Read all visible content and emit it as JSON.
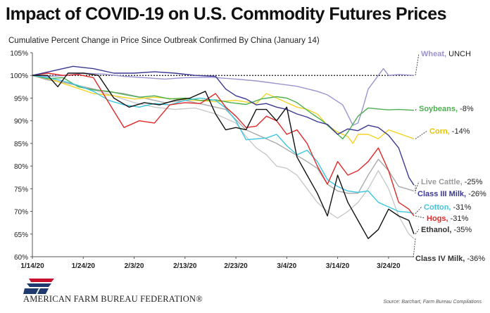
{
  "title": "Impact of COVID-19 on U.S. Commodity Futures Prices",
  "subtitle": "Cumulative Percent Change in Price Since Outbreak Confirmed By China (January 14)",
  "footer": {
    "brand": "AMERICAN FARM BUREAU FEDERATION®",
    "source": "Source: Barchart, Farm Bureau Compilations"
  },
  "logo_icon": "afbf-logo-icon",
  "chart_data": {
    "type": "line",
    "title": "Impact of COVID-19 on U.S. Commodity Futures Prices",
    "subtitle": "Cumulative Percent Change in Price Since Outbreak Confirmed By China (January 14)",
    "xlabel": "",
    "ylabel": "",
    "x_ticks": [
      "1/14/20",
      "1/24/20",
      "2/3/20",
      "2/13/20",
      "2/23/20",
      "3/4/20",
      "3/14/20",
      "3/24/20"
    ],
    "x_range_days": [
      0,
      75
    ],
    "y_ticks": [
      "60%",
      "65%",
      "70%",
      "75%",
      "80%",
      "85%",
      "90%",
      "95%",
      "100%",
      "105%"
    ],
    "ylim": [
      60,
      105
    ],
    "grid": false,
    "reference_line": {
      "y": 100,
      "style": "dotted"
    },
    "series": [
      {
        "name": "Wheat",
        "label": "Wheat, UNCH",
        "color": "#9b93d0",
        "x": [
          0,
          3,
          7,
          10,
          14,
          18,
          22,
          26,
          30,
          35,
          40,
          44,
          48,
          52,
          56,
          58,
          61,
          63,
          64,
          65,
          66,
          67,
          68,
          69,
          70,
          72,
          75
        ],
        "y": [
          100,
          99.8,
          100,
          100.5,
          100.3,
          99.8,
          99.5,
          99.2,
          99.5,
          99.6,
          99.2,
          98.8,
          98.2,
          97.6,
          96.5,
          95.7,
          93.5,
          89,
          89.5,
          93,
          97,
          98.5,
          100,
          101.5,
          100,
          100.2,
          100
        ]
      },
      {
        "name": "Soybeans",
        "label": "Soybeans, -8%",
        "color": "#4caf50",
        "x": [
          0,
          3,
          6,
          9,
          12,
          15,
          18,
          21,
          24,
          27,
          30,
          33,
          36,
          39,
          42,
          45,
          48,
          50,
          52,
          55,
          57,
          59,
          61,
          62,
          64,
          66,
          68,
          70,
          72,
          75
        ],
        "y": [
          100,
          99.3,
          99.5,
          97.5,
          96.8,
          96.5,
          95.8,
          95.2,
          95.5,
          94.8,
          95,
          94.5,
          94.6,
          94,
          93.6,
          94.8,
          95.3,
          95,
          94,
          91.5,
          90,
          88,
          86,
          87.5,
          91,
          92.8,
          92.6,
          92.4,
          92.5,
          92.3
        ]
      },
      {
        "name": "Corn",
        "label": "Corn, -14%",
        "color": "#f5d327",
        "x": [
          0,
          4,
          8,
          12,
          16,
          20,
          24,
          28,
          32,
          36,
          40,
          44,
          46,
          48,
          50,
          52,
          54,
          56,
          58,
          60,
          62,
          63,
          64,
          66,
          68,
          70,
          72,
          75
        ],
        "y": [
          100,
          99,
          97.5,
          96,
          95.5,
          94.8,
          95.2,
          94.8,
          94.5,
          94.2,
          94.5,
          93.8,
          96,
          95,
          94,
          93,
          92.5,
          91.5,
          89,
          87.5,
          86.5,
          85,
          87,
          87,
          86,
          88,
          87.2,
          86
        ]
      },
      {
        "name": "Live Cattle",
        "label": "Live Cattle, -25%",
        "color": "#aaaaaa",
        "x": [
          0,
          3,
          6,
          10,
          14,
          18,
          22,
          26,
          30,
          34,
          38,
          42,
          45,
          48,
          51,
          54,
          56,
          58,
          60,
          62,
          64,
          66,
          68,
          70,
          72,
          75
        ],
        "y": [
          100,
          99,
          98.5,
          97.5,
          96.5,
          96,
          95,
          94,
          94.5,
          93.5,
          92.5,
          88,
          86.5,
          85,
          83,
          81,
          79.5,
          76,
          74.5,
          74,
          74,
          78,
          81.5,
          79,
          75.5,
          74.5
        ]
      },
      {
        "name": "Class III Milk",
        "label": "Class III Milk, -26%",
        "color": "#3b3891",
        "x": [
          0,
          4,
          8,
          12,
          16,
          20,
          24,
          28,
          32,
          36,
          38,
          40,
          42,
          44,
          46,
          48,
          50,
          52,
          54,
          56,
          58,
          60,
          62,
          64,
          66,
          68,
          70,
          72,
          74,
          75
        ],
        "y": [
          100,
          101,
          102,
          101.5,
          100.5,
          100.5,
          100.8,
          100.5,
          100,
          99.8,
          97,
          95.5,
          94.8,
          93.5,
          93.8,
          93,
          92.5,
          91.5,
          90.8,
          89.8,
          89.2,
          87,
          88.2,
          87.8,
          89,
          88.5,
          86.8,
          84,
          77.5,
          75.8
        ]
      },
      {
        "name": "Cotton",
        "label": "Cotton, -31%",
        "color": "#3ec6e0",
        "x": [
          0,
          3,
          6,
          9,
          12,
          15,
          18,
          21,
          24,
          27,
          30,
          33,
          36,
          38,
          40,
          42,
          44,
          46,
          48,
          50,
          52,
          54,
          56,
          58,
          60,
          62,
          64,
          66,
          68,
          70,
          72,
          74,
          75
        ],
        "y": [
          100,
          99.5,
          98.8,
          97.8,
          96.5,
          94.5,
          93.5,
          93,
          93.8,
          93.5,
          94.5,
          95,
          94.5,
          92.8,
          90,
          85.8,
          86,
          86.2,
          87,
          84.5,
          82.5,
          83.5,
          81,
          77,
          75.5,
          74.5,
          74.2,
          74.5,
          72,
          71,
          70,
          69.8,
          69.5
        ]
      },
      {
        "name": "Hogs",
        "label": "Hogs, -31%",
        "color": "#e02828",
        "x": [
          0,
          3,
          6,
          9,
          12,
          15,
          18,
          21,
          24,
          27,
          30,
          33,
          36,
          38,
          40,
          42,
          44,
          46,
          48,
          50,
          52,
          54,
          56,
          58,
          60,
          62,
          64,
          66,
          68,
          70,
          72,
          74,
          75
        ],
        "y": [
          100,
          100.5,
          100,
          100.2,
          99.5,
          94,
          88.5,
          90,
          89.5,
          93.5,
          94,
          93.8,
          96,
          93,
          91,
          88.5,
          88.8,
          91,
          90,
          87,
          88,
          85,
          80,
          76,
          81,
          78,
          79,
          81,
          84,
          79,
          72,
          70.5,
          69
        ]
      },
      {
        "name": "Ethanol",
        "label": "Ethanol, -35%",
        "color": "#111111",
        "x": [
          0,
          3,
          5,
          7,
          10,
          13,
          16,
          19,
          22,
          25,
          28,
          31,
          34,
          36,
          38,
          40,
          42,
          44,
          46,
          48,
          50,
          52,
          54,
          56,
          58,
          60,
          62,
          64,
          66,
          68,
          70,
          72,
          74,
          75
        ],
        "y": [
          100,
          100,
          97.5,
          100.5,
          100.5,
          100,
          95,
          93,
          94,
          93.5,
          94.5,
          95,
          96.5,
          91.5,
          88,
          88.5,
          88,
          92.5,
          92.5,
          90,
          93,
          82,
          78,
          74,
          69,
          78,
          72,
          68,
          64,
          66,
          70.5,
          69,
          68,
          65
        ]
      },
      {
        "name": "Class IV Milk",
        "label": "Class IV Milk, -36%",
        "color": "#c9c9c9",
        "x": [
          0,
          4,
          8,
          12,
          16,
          20,
          24,
          28,
          32,
          36,
          40,
          42,
          44,
          46,
          48,
          50,
          52,
          54,
          56,
          58,
          60,
          62,
          64,
          66,
          68,
          70,
          72,
          74,
          75
        ],
        "y": [
          100,
          99,
          98,
          96.8,
          95.5,
          94,
          93,
          92.5,
          92.8,
          91.5,
          89.5,
          86.5,
          84,
          82.5,
          80,
          79.5,
          78,
          75,
          72,
          70,
          68.5,
          70,
          72,
          75,
          79,
          75,
          69,
          65,
          64
        ]
      }
    ]
  }
}
